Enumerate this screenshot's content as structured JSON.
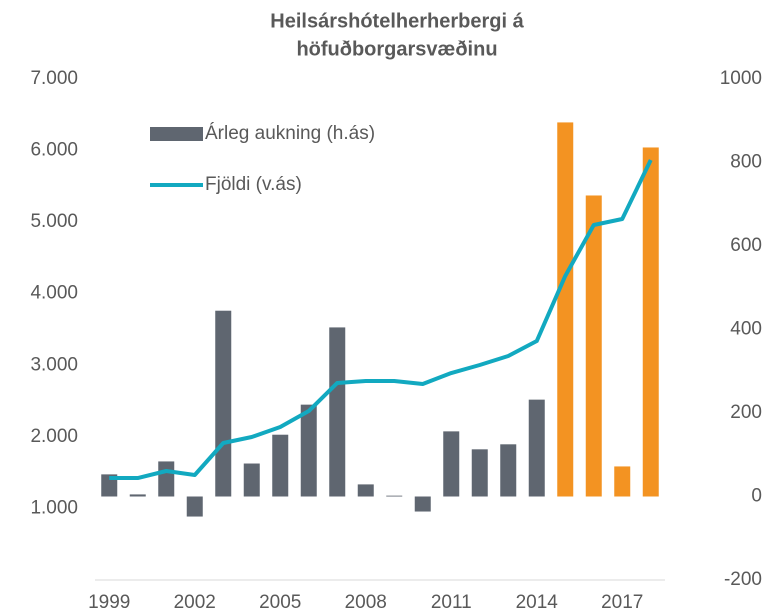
{
  "chart_data": {
    "type": "bar-line",
    "title": [
      "Heilsárshótelherherbergi á",
      "höfuðborgarsvæðinu"
    ],
    "categories": [
      "1999",
      null,
      null,
      "2002",
      null,
      null,
      "2005",
      null,
      null,
      "2008",
      null,
      null,
      "2011",
      null,
      null,
      "2014",
      null,
      null,
      "2017",
      null
    ],
    "series": [
      {
        "name": "Árleg aukning (h.ás)",
        "type": "bar",
        "axis": "y2",
        "color": "#5f6670",
        "colors": [
          "#5f6670",
          "#5f6670",
          "#5f6670",
          "#5f6670",
          "#5f6670",
          "#5f6670",
          "#5f6670",
          "#5f6670",
          "#5f6670",
          "#5f6670",
          "#5f6670",
          "#5f6670",
          "#5f6670",
          "#5f6670",
          "#5f6670",
          "#5f6670",
          "#f39322",
          "#f39322",
          "#f39322",
          "#f39322"
        ],
        "values": [
          53,
          5,
          84,
          -48,
          445,
          79,
          148,
          220,
          405,
          29,
          2,
          -36,
          156,
          113,
          125,
          232,
          896,
          721,
          72,
          836
        ]
      },
      {
        "name": "Fjöldi (v.ás)",
        "type": "line",
        "axis": "y",
        "color": "#12a9c0",
        "values": [
          1425,
          1425,
          1523,
          1467,
          1914,
          1998,
          2138,
          2361,
          2753,
          2780,
          2780,
          2739,
          2892,
          3004,
          3130,
          3339,
          4248,
          4960,
          5044,
          5868
        ]
      }
    ],
    "ylim": [
      0,
      7000
    ],
    "yticks": [
      {
        "value": 1000,
        "label": "1.000"
      },
      {
        "value": 2000,
        "label": "2.000"
      },
      {
        "value": 3000,
        "label": "3.000"
      },
      {
        "value": 4000,
        "label": "4.000"
      },
      {
        "value": 5000,
        "label": "5.000"
      },
      {
        "value": 6000,
        "label": "6.000"
      },
      {
        "value": 7000,
        "label": "7.000"
      }
    ],
    "y2lim": [
      -200,
      1000
    ],
    "y2ticks": [
      -200,
      0,
      200,
      400,
      600,
      800,
      1000
    ],
    "grid": false
  }
}
